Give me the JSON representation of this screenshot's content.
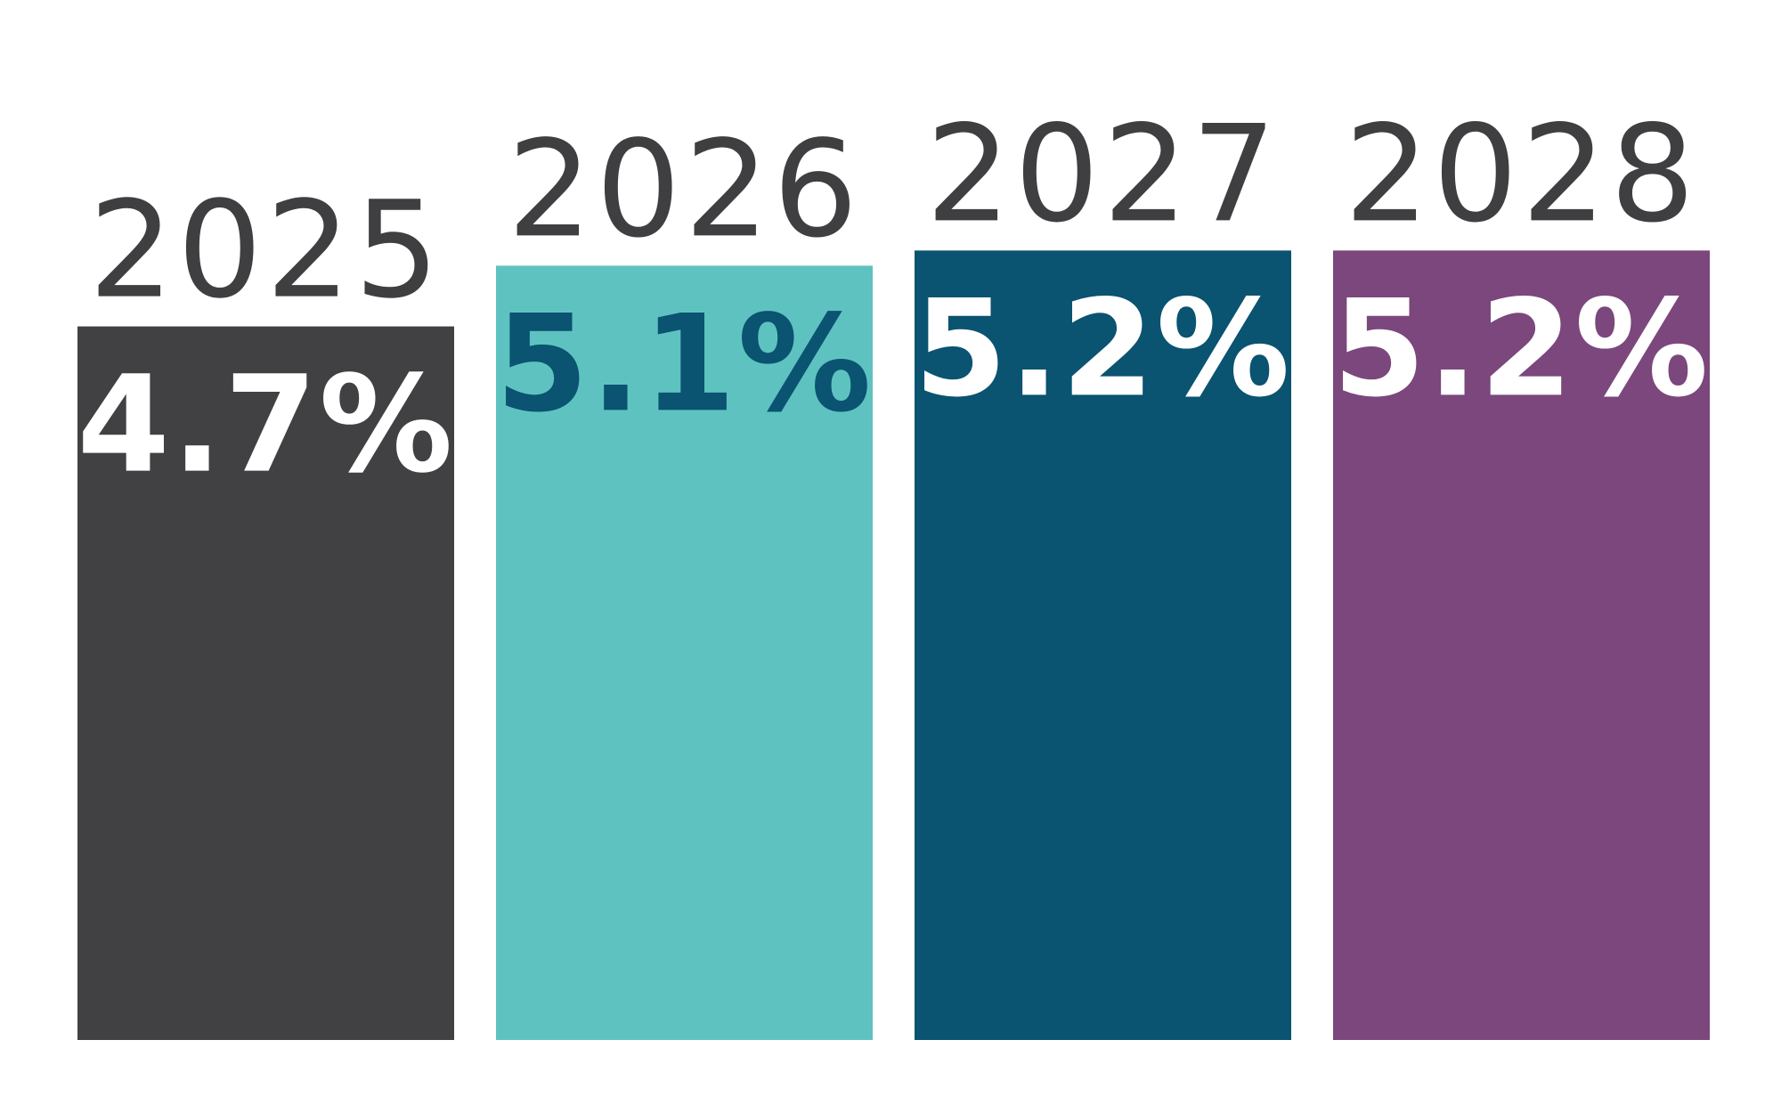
{
  "chart_data": {
    "type": "bar",
    "categories": [
      "2025",
      "2026",
      "2027",
      "2028"
    ],
    "values": [
      4.7,
      5.1,
      5.2,
      5.2
    ],
    "value_labels": [
      "4.7%",
      "5.1%",
      "5.2%",
      "5.2%"
    ],
    "title": "",
    "xlabel": "",
    "ylabel": "",
    "ylim": [
      0,
      6.85
    ],
    "grid": false,
    "legend": "none",
    "bar_colors": [
      "#414042",
      "#5ec3c0",
      "#0a5371",
      "#7b477c"
    ],
    "value_label_colors": [
      "#ffffff",
      "#0a5371",
      "#ffffff",
      "#ffffff"
    ],
    "year_label_color": "#3f3f41"
  }
}
